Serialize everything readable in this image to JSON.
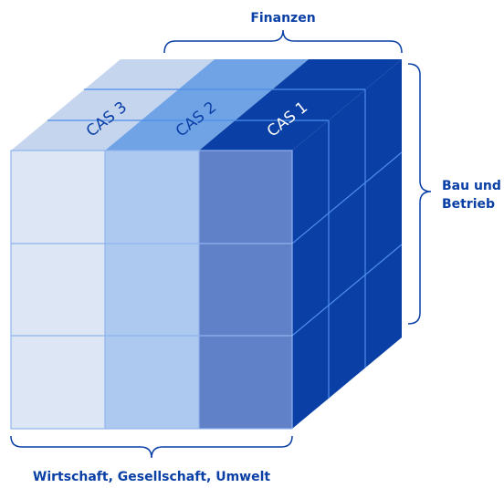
{
  "top_label": "Finanzen",
  "right_label": [
    "Bau und",
    "Betrieb"
  ],
  "bottom_label": "Wirtschaft, Gesellschaft, Umwelt",
  "cas": [
    "CAS 3",
    "CAS 2",
    "CAS 1"
  ]
}
